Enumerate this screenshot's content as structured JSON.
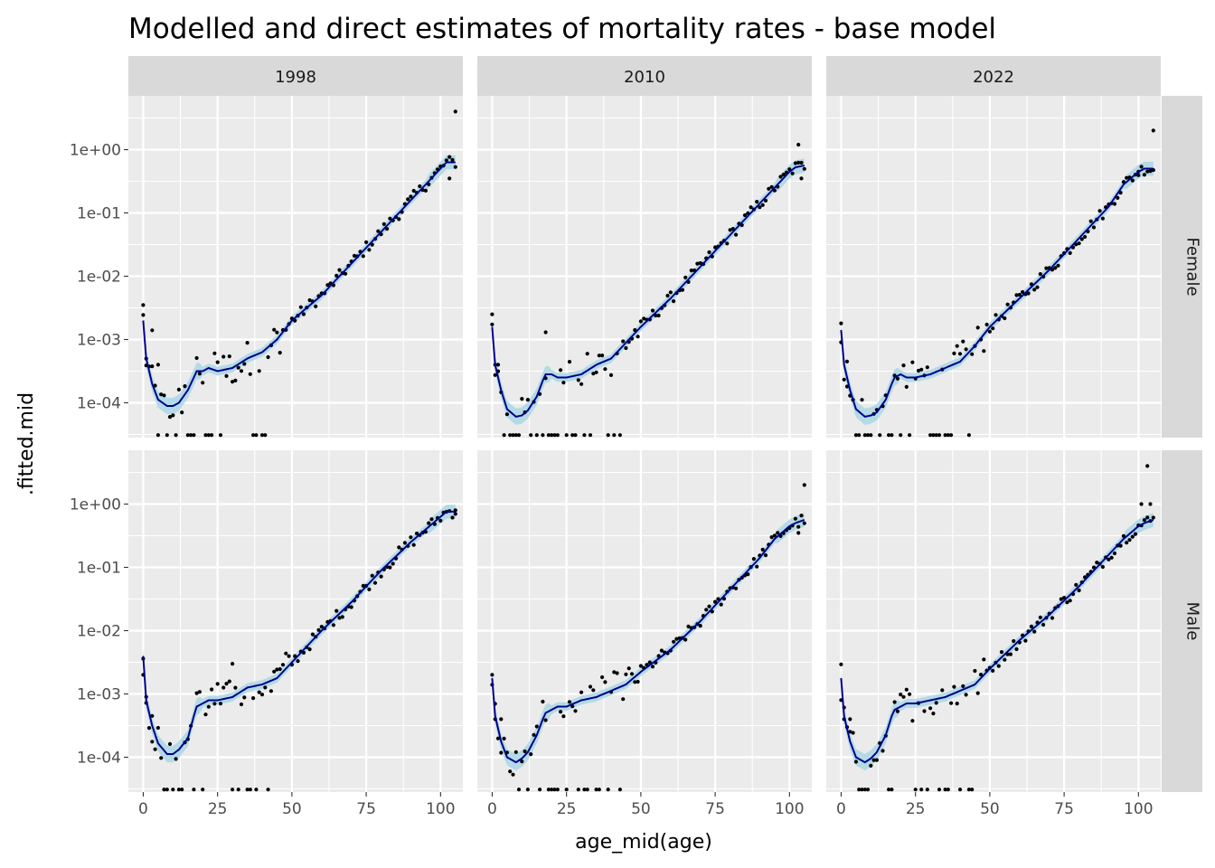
{
  "chart_data": {
    "type": "line",
    "title": "Modelled and direct estimates of mortality rates - base model",
    "xlabel": "age_mid(age)",
    "ylabel": ".fitted.mid",
    "y_scale": "log10",
    "xlim": [
      -5,
      107.5
    ],
    "ylim_log10": [
      -4.55,
      0.85
    ],
    "x_ticks": [
      0,
      25,
      50,
      75,
      100
    ],
    "x_tick_labels": [
      "0",
      "25",
      "50",
      "75",
      "100"
    ],
    "y_ticks": [
      0.0001,
      0.001,
      0.01,
      0.1,
      1
    ],
    "y_tick_labels": [
      "1e-04",
      "1e-03",
      "1e-02",
      "1e-01",
      "1e+00"
    ],
    "grid": true,
    "columns": [
      "1998",
      "2010",
      "2022"
    ],
    "rows": [
      "Female",
      "Male"
    ],
    "colors": {
      "line": "#00008b",
      "ribbon": "#add8e6",
      "points": "#000000",
      "panel_bg": "#ebebeb",
      "strip_bg": "#d9d9d9"
    },
    "fitted_knots_x": [
      0,
      1,
      3,
      5,
      8,
      10,
      12,
      15,
      17,
      18,
      20,
      22,
      25,
      30,
      35,
      40,
      45,
      50,
      60,
      70,
      80,
      90,
      95,
      100,
      102,
      105
    ],
    "panels": [
      {
        "col": "1998",
        "row": "Female",
        "fitted_log10": [
          -2.7,
          -3.3,
          -3.7,
          -3.95,
          -4.05,
          -4.05,
          -4.0,
          -3.8,
          -3.6,
          -3.5,
          -3.5,
          -3.45,
          -3.5,
          -3.45,
          -3.3,
          -3.2,
          -3.0,
          -2.7,
          -2.3,
          -1.8,
          -1.3,
          -0.8,
          -0.55,
          -0.3,
          -0.2,
          -0.2
        ],
        "anchor_points": [
          [
            0,
            0.0035
          ],
          [
            1,
            0.0005
          ],
          [
            3,
            0.0014
          ],
          [
            5,
            0.0004
          ],
          [
            105,
            4.0
          ],
          [
            103,
            0.35
          ]
        ]
      },
      {
        "col": "2010",
        "row": "Female",
        "fitted_log10": [
          -2.8,
          -3.4,
          -3.8,
          -4.1,
          -4.22,
          -4.2,
          -4.12,
          -3.9,
          -3.65,
          -3.55,
          -3.55,
          -3.6,
          -3.6,
          -3.55,
          -3.4,
          -3.3,
          -3.05,
          -2.8,
          -2.35,
          -1.85,
          -1.35,
          -0.85,
          -0.6,
          -0.35,
          -0.28,
          -0.25
        ],
        "anchor_points": [
          [
            0,
            0.0025
          ],
          [
            1,
            0.0004
          ],
          [
            2,
            0.0004
          ],
          [
            18,
            0.0013
          ],
          [
            103,
            1.2
          ],
          [
            104,
            0.35
          ]
        ]
      },
      {
        "col": "2022",
        "row": "Female",
        "fitted_log10": [
          -2.85,
          -3.4,
          -3.8,
          -4.1,
          -4.22,
          -4.2,
          -4.15,
          -3.95,
          -3.7,
          -3.6,
          -3.55,
          -3.6,
          -3.6,
          -3.55,
          -3.45,
          -3.35,
          -3.1,
          -2.8,
          -2.35,
          -1.9,
          -1.4,
          -0.9,
          -0.55,
          -0.35,
          -0.3,
          -0.3
        ],
        "anchor_points": [
          [
            0,
            0.0018
          ],
          [
            2,
            0.00045
          ],
          [
            105,
            2.0
          ],
          [
            100,
            0.45
          ]
        ]
      },
      {
        "col": "1998",
        "row": "Male",
        "fitted_log10": [
          -2.4,
          -3.1,
          -3.5,
          -3.78,
          -3.95,
          -3.95,
          -3.88,
          -3.7,
          -3.35,
          -3.2,
          -3.15,
          -3.1,
          -3.1,
          -3.05,
          -2.9,
          -2.85,
          -2.75,
          -2.5,
          -2.0,
          -1.55,
          -1.05,
          -0.6,
          -0.4,
          -0.2,
          -0.12,
          -0.12
        ],
        "anchor_points": [
          [
            0,
            0.002
          ],
          [
            1,
            0.0009
          ],
          [
            3,
            0.00045
          ],
          [
            30,
            0.003
          ],
          [
            105,
            0.8
          ]
        ]
      },
      {
        "col": "2010",
        "row": "Male",
        "fitted_log10": [
          -2.75,
          -3.35,
          -3.75,
          -4.0,
          -4.08,
          -4.02,
          -3.92,
          -3.65,
          -3.4,
          -3.3,
          -3.25,
          -3.2,
          -3.2,
          -3.1,
          -3.05,
          -2.95,
          -2.85,
          -2.65,
          -2.3,
          -1.85,
          -1.35,
          -0.85,
          -0.55,
          -0.35,
          -0.3,
          -0.25
        ],
        "anchor_points": [
          [
            0,
            0.002
          ],
          [
            1,
            0.0004
          ],
          [
            3,
            0.0004
          ],
          [
            105,
            2.0
          ],
          [
            103,
            0.35
          ]
        ]
      },
      {
        "col": "2022",
        "row": "Male",
        "fitted_log10": [
          -2.75,
          -3.35,
          -3.75,
          -4.0,
          -4.08,
          -4.02,
          -3.92,
          -3.65,
          -3.35,
          -3.25,
          -3.2,
          -3.15,
          -3.15,
          -3.1,
          -3.05,
          -2.95,
          -2.85,
          -2.6,
          -2.15,
          -1.75,
          -1.3,
          -0.8,
          -0.55,
          -0.35,
          -0.3,
          -0.25
        ],
        "anchor_points": [
          [
            0,
            0.0008
          ],
          [
            1,
            0.0004
          ],
          [
            3,
            0.0004
          ],
          [
            103,
            4.0
          ],
          [
            101,
            1.0
          ],
          [
            104,
            1.0
          ]
        ]
      }
    ]
  }
}
